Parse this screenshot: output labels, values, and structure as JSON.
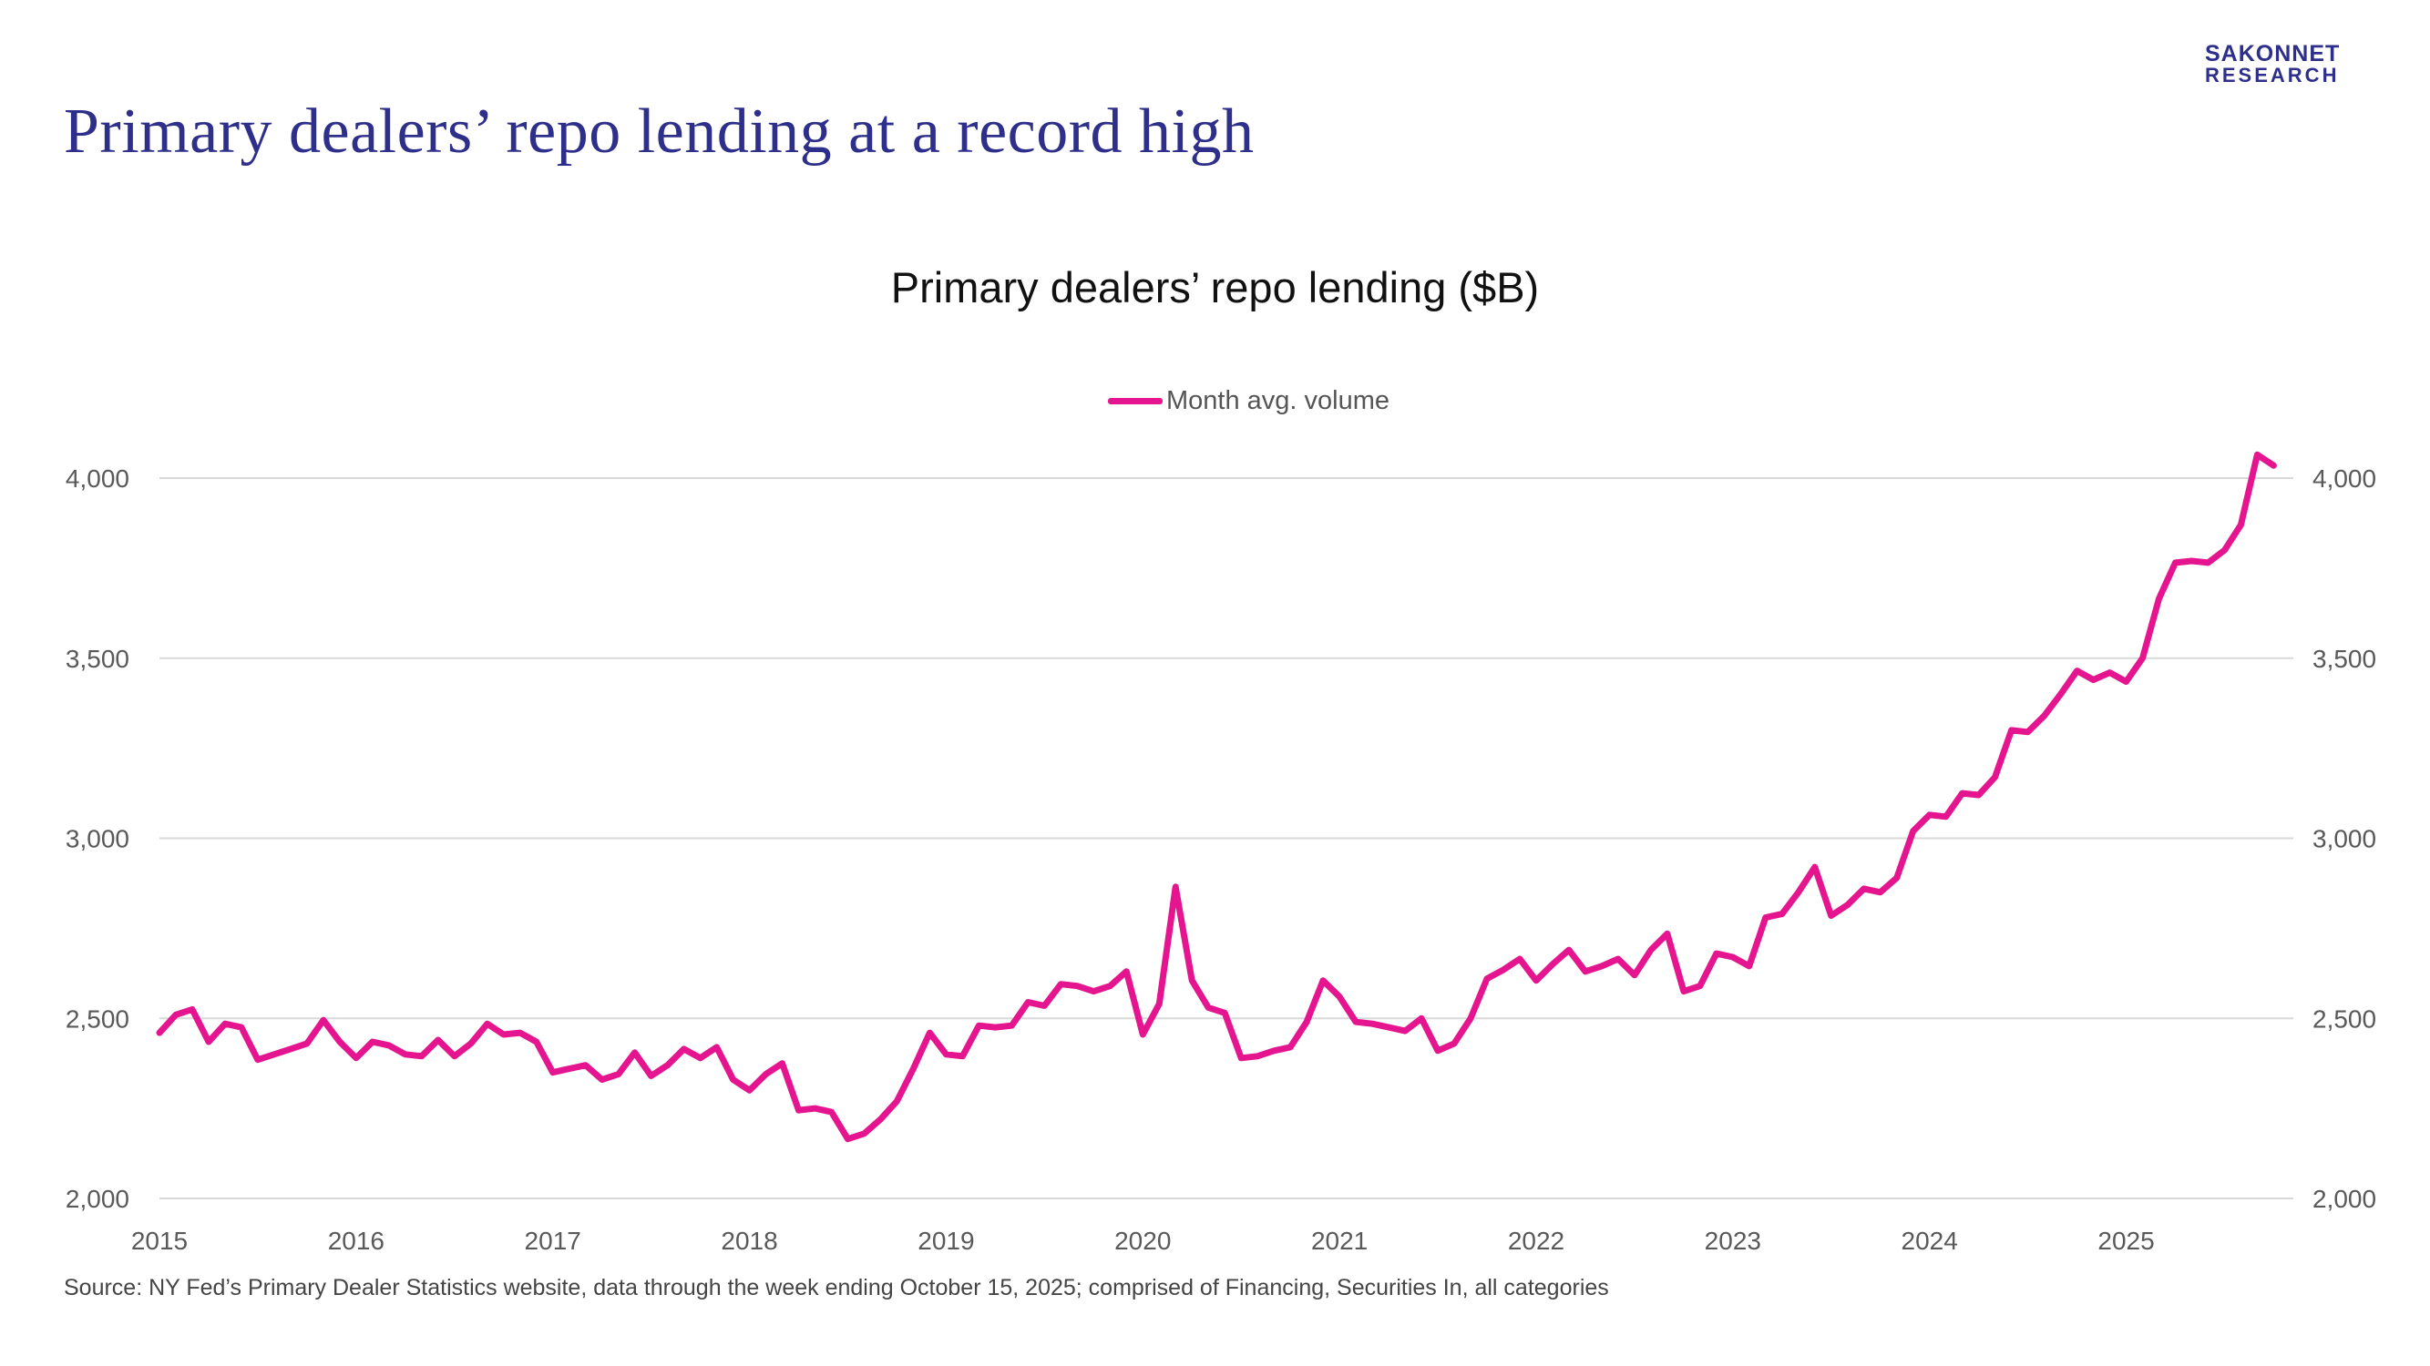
{
  "header": {
    "title": "Primary dealers’ repo lending at a record high",
    "logo_line1": "SAKONNET",
    "logo_line2": "RESEARCH"
  },
  "source_note": "Source: NY Fed’s Primary Dealer Statistics website, data through the week ending October 15, 2025; comprised of Financing, Securities In, all categories",
  "colors": {
    "series": "#e5148f",
    "title": "#2d2f8a",
    "grid": "#d9d9d9"
  },
  "chart_data": {
    "type": "line",
    "title": "Primary dealers’ repo lending ($B)",
    "legend_position": "top-center",
    "xlabel": "",
    "ylabel": "",
    "ylim": [
      2000,
      4000
    ],
    "yticks": [
      2000,
      2500,
      3000,
      3500,
      4000
    ],
    "ytick_labels": [
      "2,000",
      "2,500",
      "3,000",
      "3,500",
      "4,000"
    ],
    "secondary_axis_labels": [
      "2,000",
      "2,500",
      "3,000",
      "3,500",
      "4,000"
    ],
    "xlim": [
      2015.0,
      2025.85
    ],
    "xticks": [
      2015,
      2016,
      2017,
      2018,
      2019,
      2020,
      2021,
      2022,
      2023,
      2024,
      2025
    ],
    "xtick_labels": [
      "2015",
      "2016",
      "2017",
      "2018",
      "2019",
      "2020",
      "2021",
      "2022",
      "2023",
      "2024",
      "2025"
    ],
    "grid": true,
    "series": [
      {
        "name": "Month avg. volume",
        "x_start": 2015.0,
        "x_step_months": 1,
        "values": [
          2460,
          2510,
          2525,
          2435,
          2485,
          2475,
          2385,
          2400,
          2415,
          2430,
          2495,
          2435,
          2390,
          2435,
          2425,
          2400,
          2395,
          2440,
          2395,
          2430,
          2485,
          2455,
          2460,
          2435,
          2350,
          2360,
          2370,
          2330,
          2345,
          2405,
          2340,
          2370,
          2415,
          2390,
          2420,
          2330,
          2300,
          2345,
          2375,
          2245,
          2250,
          2240,
          2165,
          2180,
          2220,
          2270,
          2360,
          2460,
          2400,
          2395,
          2480,
          2475,
          2480,
          2545,
          2535,
          2595,
          2590,
          2575,
          2590,
          2630,
          2455,
          2540,
          2865,
          2605,
          2530,
          2515,
          2390,
          2395,
          2410,
          2420,
          2490,
          2605,
          2560,
          2490,
          2485,
          2475,
          2465,
          2500,
          2410,
          2430,
          2500,
          2610,
          2635,
          2665,
          2605,
          2650,
          2690,
          2630,
          2645,
          2665,
          2620,
          2690,
          2735,
          2575,
          2590,
          2680,
          2670,
          2645,
          2780,
          2790,
          2850,
          2920,
          2785,
          2815,
          2860,
          2850,
          2890,
          3020,
          3065,
          3060,
          3125,
          3120,
          3170,
          3300,
          3295,
          3340,
          3400,
          3465,
          3440,
          3460,
          3435,
          3500,
          3665,
          3765,
          3770,
          3765,
          3800,
          3870,
          4065,
          4035
        ]
      }
    ]
  }
}
